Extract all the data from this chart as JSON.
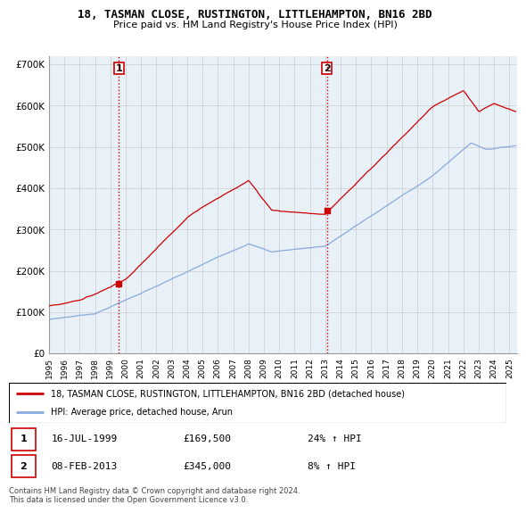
{
  "title": "18, TASMAN CLOSE, RUSTINGTON, LITTLEHAMPTON, BN16 2BD",
  "subtitle": "Price paid vs. HM Land Registry's House Price Index (HPI)",
  "legend_line1": "18, TASMAN CLOSE, RUSTINGTON, LITTLEHAMPTON, BN16 2BD (detached house)",
  "legend_line2": "HPI: Average price, detached house, Arun",
  "sale1_date": "16-JUL-1999",
  "sale1_price": "£169,500",
  "sale1_hpi": "24% ↑ HPI",
  "sale2_date": "08-FEB-2013",
  "sale2_price": "£345,000",
  "sale2_hpi": "8% ↑ HPI",
  "footer": "Contains HM Land Registry data © Crown copyright and database right 2024.\nThis data is licensed under the Open Government Licence v3.0.",
  "sale1_x": 1999.54,
  "sale1_y": 169500,
  "sale2_x": 2013.1,
  "sale2_y": 345000,
  "red_color": "#cc0000",
  "blue_color": "#88aadd",
  "vline_color": "#cc0000",
  "grid_color": "#cccccc",
  "plot_bg": "#e8f0f8",
  "background_color": "#ffffff",
  "ylim": [
    0,
    720000
  ],
  "xlim": [
    1995.0,
    2025.5
  ]
}
